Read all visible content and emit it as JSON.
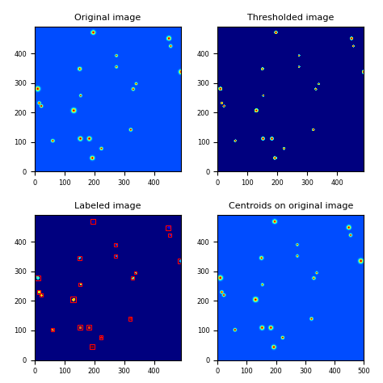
{
  "chart_data": [
    {
      "type": "image",
      "title": "Original image",
      "xlim": [
        0,
        490
      ],
      "ylim": [
        0,
        490
      ],
      "xticks": [
        0,
        100,
        200,
        300,
        400
      ],
      "yticks": [
        0,
        100,
        200,
        300,
        400
      ],
      "x": [
        195,
        447,
        453,
        272,
        272,
        488,
        150,
        10,
        338,
        328,
        153,
        15,
        22,
        130,
        60,
        152,
        182,
        222,
        320,
        192
      ],
      "y": [
        468,
        448,
        422,
        390,
        352,
        335,
        345,
        278,
        295,
        277,
        255,
        230,
        220,
        205,
        103,
        110,
        110,
        77,
        140,
        45
      ],
      "radius": [
        8,
        8,
        6,
        5,
        5,
        9,
        7,
        9,
        5,
        6,
        5,
        6,
        6,
        9,
        6,
        8,
        8,
        6,
        6,
        8
      ]
    },
    {
      "type": "threshold",
      "title": "Thresholded image",
      "xlim": [
        0,
        490
      ],
      "ylim": [
        0,
        490
      ],
      "xticks": [
        0,
        100,
        200,
        300,
        400
      ],
      "yticks": [
        0,
        100,
        200,
        300,
        400
      ],
      "x": [
        195,
        447,
        453,
        272,
        272,
        488,
        150,
        10,
        338,
        328,
        153,
        15,
        22,
        130,
        60,
        152,
        182,
        222,
        320,
        192
      ],
      "y": [
        468,
        448,
        422,
        390,
        352,
        335,
        345,
        278,
        295,
        277,
        255,
        230,
        220,
        205,
        103,
        110,
        110,
        77,
        140,
        45
      ],
      "radius": [
        8,
        8,
        6,
        5,
        5,
        9,
        7,
        9,
        5,
        6,
        5,
        6,
        6,
        9,
        6,
        8,
        8,
        6,
        6,
        8
      ]
    },
    {
      "type": "label",
      "title": "Labeled image",
      "xlim": [
        0,
        490
      ],
      "ylim": [
        0,
        490
      ],
      "xticks": [
        0,
        100,
        200,
        300,
        400
      ],
      "yticks": [
        0,
        100,
        200,
        300,
        400
      ],
      "x": [
        195,
        447,
        453,
        272,
        272,
        488,
        150,
        10,
        338,
        328,
        153,
        15,
        22,
        130,
        60,
        152,
        182,
        222,
        320,
        192
      ],
      "y": [
        468,
        448,
        422,
        390,
        352,
        335,
        345,
        278,
        295,
        277,
        255,
        230,
        220,
        205,
        103,
        110,
        110,
        77,
        140,
        45
      ],
      "radius": [
        8,
        8,
        6,
        5,
        5,
        9,
        7,
        9,
        5,
        6,
        5,
        6,
        6,
        9,
        6,
        8,
        8,
        6,
        6,
        8
      ],
      "color": "red"
    },
    {
      "type": "centroid",
      "title": "Centroids on original image",
      "xlim": [
        0,
        500
      ],
      "ylim": [
        0,
        490
      ],
      "xticks": [
        0,
        100,
        200,
        300,
        400,
        500
      ],
      "yticks": [
        0,
        100,
        200,
        300,
        400
      ],
      "x": [
        195,
        447,
        453,
        272,
        272,
        488,
        150,
        10,
        338,
        328,
        153,
        15,
        22,
        130,
        60,
        152,
        182,
        222,
        320,
        192
      ],
      "y": [
        468,
        448,
        422,
        390,
        352,
        335,
        345,
        278,
        295,
        277,
        255,
        230,
        220,
        205,
        103,
        110,
        110,
        77,
        140,
        45
      ],
      "radius": [
        8,
        8,
        6,
        5,
        5,
        9,
        7,
        9,
        5,
        6,
        5,
        6,
        6,
        9,
        6,
        8,
        8,
        6,
        6,
        8
      ]
    }
  ]
}
